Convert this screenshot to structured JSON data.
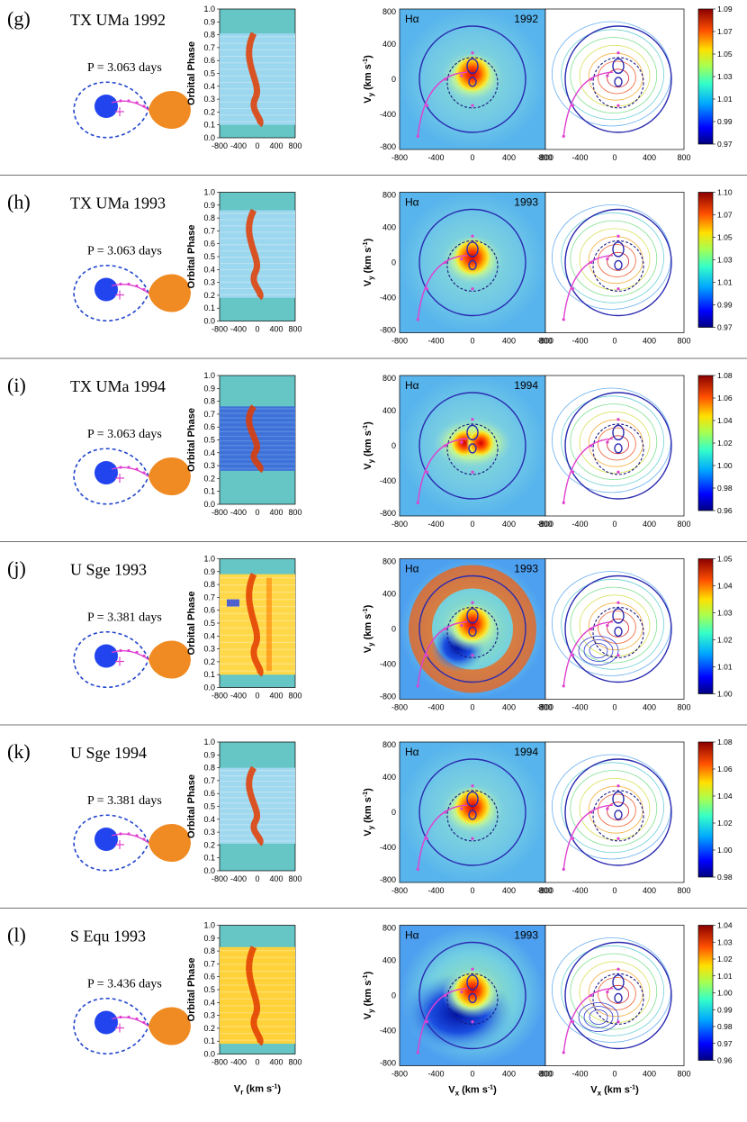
{
  "figure": {
    "colors": {
      "primary_star": "#2244ee",
      "secondary_star": "#f08a22",
      "roche_lobe": "#2244cc",
      "stream": "#e040d0",
      "trail_background": "#66c6c6",
      "divider": "#444444"
    },
    "trail_axis": {
      "ylabel": "Orbital Phase",
      "yticks": [
        "0.0",
        "0.1",
        "0.2",
        "0.3",
        "0.4",
        "0.5",
        "0.6",
        "0.7",
        "0.8",
        "0.9",
        "1.0"
      ],
      "xticks": [
        "-800",
        "-400",
        "0",
        "400",
        "800"
      ],
      "xlabel": "V",
      "xlabel_sub": "r",
      "xlabel_unit": " (km s",
      "xlabel_exp": "-1",
      "xlabel_close": ")"
    },
    "tomo_axis": {
      "ylabel": "V",
      "ylabel_sub": "y",
      "ylabel_unit": "  (km s",
      "ylabel_exp": "-1",
      "ylabel_close": ")",
      "ticks": [
        "800",
        "400",
        "0",
        "-400",
        "-800"
      ],
      "xticks": [
        "-800",
        "-400",
        "0",
        "400",
        "800"
      ],
      "xlabel": "V",
      "xlabel_sub": "x",
      "xlabel_unit": " (km s",
      "xlabel_exp": "-1",
      "xlabel_close": ")",
      "line_label": "Hα"
    },
    "panels": [
      {
        "label": "(g)",
        "star": "TX UMa",
        "year": "1992",
        "period": "P = 3.063 days",
        "trail_range": [
          0.1,
          0.81
        ],
        "colorbar": [
          "1.09",
          "1.07",
          "1.05",
          "1.03",
          "1.01",
          "0.99",
          "0.97"
        ],
        "map_style": "spot",
        "trail_style": "red"
      },
      {
        "label": "(h)",
        "star": "TX UMa",
        "year": "1993",
        "period": "P = 3.063 days",
        "trail_range": [
          0.18,
          0.86
        ],
        "colorbar": [
          "1.10",
          "1.07",
          "1.05",
          "1.03",
          "1.01",
          "0.99",
          "0.97"
        ],
        "map_style": "spot",
        "trail_style": "red"
      },
      {
        "label": "(i)",
        "star": "TX UMa",
        "year": "1994",
        "period": "P = 3.063 days",
        "trail_range": [
          0.26,
          0.76
        ],
        "colorbar": [
          "1.08",
          "1.06",
          "1.04",
          "1.02",
          "1.00",
          "0.98",
          "0.96"
        ],
        "map_style": "double",
        "trail_style": "blue"
      },
      {
        "label": "(j)",
        "star": "U Sge",
        "year": "1993",
        "period": "P = 3.381 days",
        "trail_range": [
          0.1,
          0.88
        ],
        "colorbar": [
          "1.05",
          "1.04",
          "1.03",
          "1.02",
          "1.01",
          "1.00"
        ],
        "map_style": "ring",
        "trail_style": "mixed"
      },
      {
        "label": "(k)",
        "star": "U Sge",
        "year": "1994",
        "period": "P = 3.381 days",
        "trail_range": [
          0.21,
          0.8
        ],
        "colorbar": [
          "1.08",
          "1.06",
          "1.04",
          "1.02",
          "1.00",
          "0.98"
        ],
        "map_style": "spot",
        "trail_style": "pale"
      },
      {
        "label": "(l)",
        "star": "S Equ",
        "year": "1993",
        "period": "P = 3.436 days",
        "trail_range": [
          0.08,
          0.83
        ],
        "colorbar": [
          "1.04",
          "1.03",
          "1.02",
          "1.01",
          "1.00",
          "0.99",
          "0.98",
          "0.97",
          "0.96"
        ],
        "map_style": "dark",
        "trail_style": "yellow"
      }
    ]
  }
}
